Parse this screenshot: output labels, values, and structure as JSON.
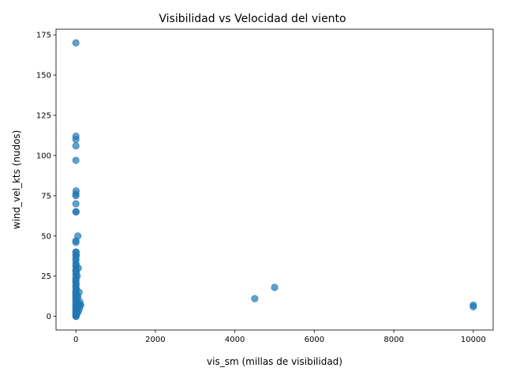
{
  "chart_data": {
    "type": "scatter",
    "title": "Visibilidad vs Velocidad del viento",
    "xlabel": "vis_sm (millas de visibilidad)",
    "ylabel": "wind_vel_kts (nudos)",
    "xlim": [
      -500,
      10500
    ],
    "ylim": [
      -8.5,
      178.5
    ],
    "xticks": [
      0,
      2000,
      4000,
      6000,
      8000,
      10000
    ],
    "xtick_labels": [
      "0",
      "2000",
      "4000",
      "6000",
      "8000",
      "10000"
    ],
    "yticks": [
      0,
      25,
      50,
      75,
      100,
      125,
      150,
      175
    ],
    "ytick_labels": [
      "0",
      "25",
      "50",
      "75",
      "100",
      "125",
      "150",
      "175"
    ],
    "grid": false,
    "marker_color": "#1f77b4",
    "marker_alpha": 0.7,
    "series": [
      {
        "points": [
          [
            0,
            170
          ],
          [
            0,
            112
          ],
          [
            0,
            110
          ],
          [
            0,
            106
          ],
          [
            0,
            97
          ],
          [
            5,
            78
          ],
          [
            0,
            76
          ],
          [
            0,
            75
          ],
          [
            0,
            70
          ],
          [
            0,
            65
          ],
          [
            5,
            65
          ],
          [
            50,
            50
          ],
          [
            0,
            47
          ],
          [
            0,
            46
          ],
          [
            0,
            40
          ],
          [
            5,
            40
          ],
          [
            10,
            38
          ],
          [
            0,
            38
          ],
          [
            0,
            36
          ],
          [
            0,
            35
          ],
          [
            0,
            33
          ],
          [
            5,
            32
          ],
          [
            0,
            31
          ],
          [
            60,
            30
          ],
          [
            0,
            29
          ],
          [
            0,
            28
          ],
          [
            10,
            27
          ],
          [
            0,
            26
          ],
          [
            30,
            25
          ],
          [
            0,
            24
          ],
          [
            0,
            23
          ],
          [
            0,
            22
          ],
          [
            0,
            21
          ],
          [
            5,
            20
          ],
          [
            0,
            19
          ],
          [
            0,
            18
          ],
          [
            10,
            17
          ],
          [
            0,
            16
          ],
          [
            80,
            15
          ],
          [
            0,
            15
          ],
          [
            0,
            14
          ],
          [
            30,
            13
          ],
          [
            0,
            13
          ],
          [
            0,
            12
          ],
          [
            50,
            12
          ],
          [
            0,
            11
          ],
          [
            5,
            10
          ],
          [
            100,
            9
          ],
          [
            0,
            9
          ],
          [
            0,
            8
          ],
          [
            60,
            8
          ],
          [
            110,
            7
          ],
          [
            120,
            7
          ],
          [
            0,
            7
          ],
          [
            40,
            6
          ],
          [
            0,
            6
          ],
          [
            0,
            5
          ],
          [
            90,
            5
          ],
          [
            0,
            4
          ],
          [
            20,
            4
          ],
          [
            0,
            3
          ],
          [
            60,
            3
          ],
          [
            0,
            2
          ],
          [
            30,
            2
          ],
          [
            0,
            1
          ],
          [
            10,
            1
          ],
          [
            0,
            0
          ],
          [
            5,
            0
          ],
          [
            4500,
            11
          ],
          [
            5000,
            18
          ],
          [
            10000,
            7
          ],
          [
            10000,
            6
          ]
        ]
      }
    ]
  }
}
